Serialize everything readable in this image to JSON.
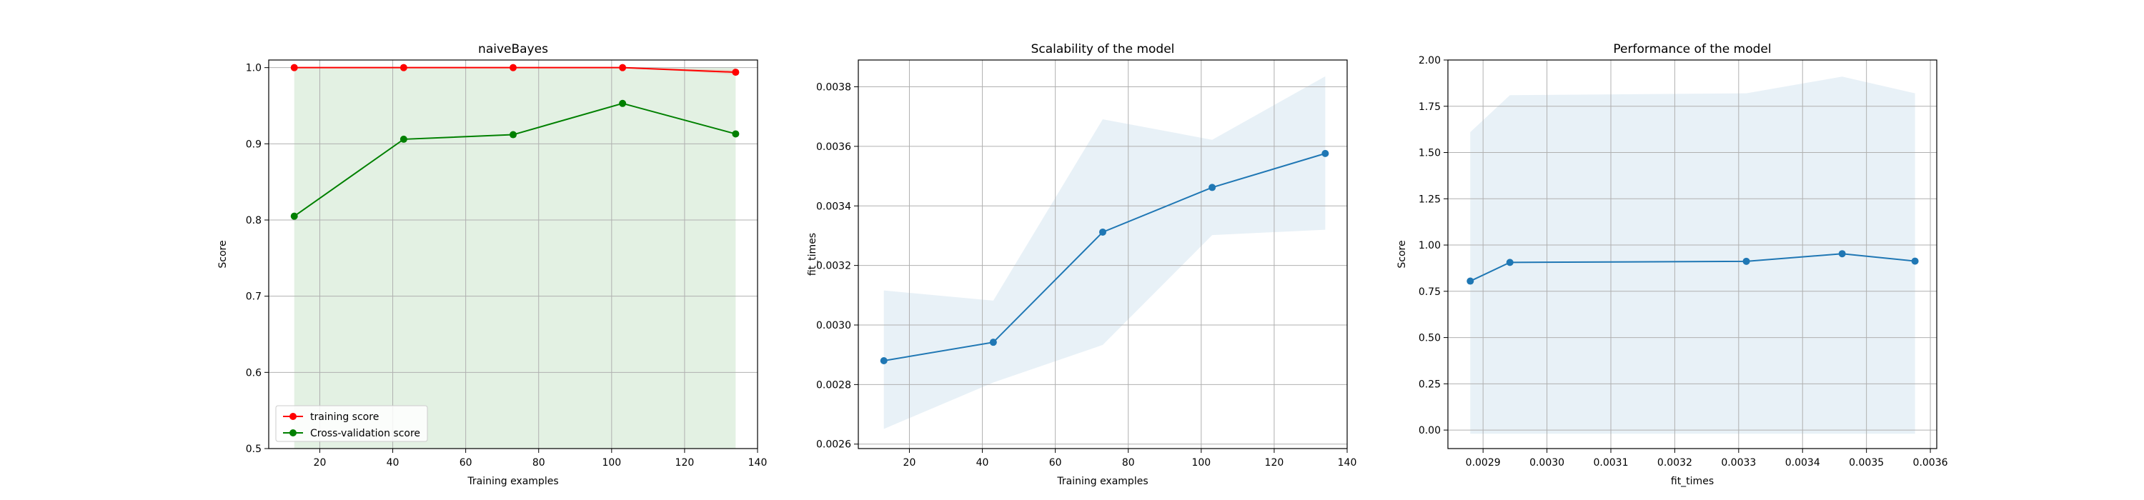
{
  "chart_data": [
    {
      "type": "line",
      "title": "naiveBayes",
      "xlabel": "Training examples",
      "ylabel": "Score",
      "xlim": [
        6,
        140
      ],
      "ylim": [
        0.5,
        1.01
      ],
      "xticks": [
        "20",
        "40",
        "60",
        "80",
        "100",
        "120",
        "140"
      ],
      "yticks": [
        "0.5",
        "0.6",
        "0.7",
        "0.8",
        "0.9",
        "1.0"
      ],
      "grid": true,
      "legend": "lower-left",
      "x": [
        13,
        43,
        73,
        103,
        134
      ],
      "series": [
        {
          "name": "training score",
          "color": "#ff0000",
          "values": [
            1.0,
            1.0,
            1.0,
            1.0,
            0.994
          ],
          "band_low": [
            1.0,
            1.0,
            1.0,
            1.0,
            0.991
          ],
          "band_high": [
            1.0,
            1.0,
            1.0,
            1.0,
            0.997
          ]
        },
        {
          "name": "Cross-validation score",
          "color": "#008000",
          "values": [
            0.805,
            0.906,
            0.912,
            0.953,
            0.913
          ],
          "band_low": [
            0.5,
            0.5,
            0.5,
            0.5,
            0.5
          ],
          "band_high": [
            1.0,
            1.0,
            1.0,
            1.0,
            1.0
          ]
        }
      ]
    },
    {
      "type": "line",
      "title": "Scalability of the model",
      "xlabel": "Training examples",
      "ylabel": "fit_times",
      "xlim": [
        6,
        140
      ],
      "ylim": [
        0.002585,
        0.00389
      ],
      "xticks": [
        "20",
        "40",
        "60",
        "80",
        "100",
        "120",
        "140"
      ],
      "yticks": [
        "0.0026",
        "0.0028",
        "0.0030",
        "0.0032",
        "0.0034",
        "0.0036",
        "0.0038"
      ],
      "grid": true,
      "x": [
        13,
        43,
        73,
        103,
        134
      ],
      "series": [
        {
          "name": "",
          "color": "#1f77b4",
          "values": [
            0.00288,
            0.002942,
            0.003312,
            0.003462,
            0.003576
          ],
          "band_low": [
            0.002651,
            0.002807,
            0.002933,
            0.003302,
            0.00332
          ],
          "band_high": [
            0.003116,
            0.003082,
            0.003691,
            0.003622,
            0.003835
          ]
        }
      ]
    },
    {
      "type": "line",
      "title": "Performance of the model",
      "xlabel": "fit_times",
      "ylabel": "Score",
      "xlim": [
        0.002845,
        0.00361
      ],
      "ylim": [
        -0.1,
        2.0
      ],
      "xticks": [
        "0.0029",
        "0.0030",
        "0.0031",
        "0.0032",
        "0.0033",
        "0.0034",
        "0.0035",
        "0.0036"
      ],
      "yticks": [
        "0.00",
        "0.25",
        "0.50",
        "0.75",
        "1.00",
        "1.25",
        "1.50",
        "1.75",
        "2.00"
      ],
      "grid": true,
      "x": [
        0.00288,
        0.002942,
        0.003312,
        0.003462,
        0.003576
      ],
      "series": [
        {
          "name": "",
          "color": "#1f77b4",
          "values": [
            0.805,
            0.906,
            0.912,
            0.953,
            0.913
          ],
          "band_low": [
            -0.02,
            -0.02,
            -0.02,
            -0.02,
            -0.02
          ],
          "band_high": [
            1.61,
            1.81,
            1.82,
            1.91,
            1.82
          ]
        }
      ]
    }
  ],
  "colors": {
    "panel1_band": "#008000",
    "panel23_band": "#1f77b4"
  }
}
